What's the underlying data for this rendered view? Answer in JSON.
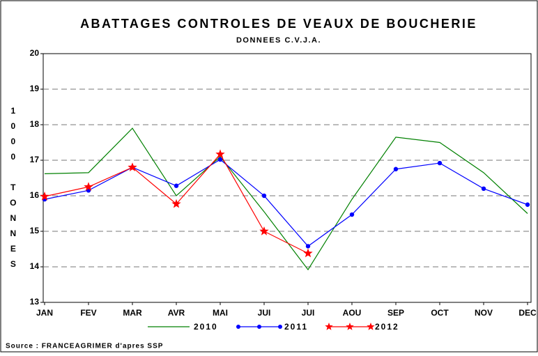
{
  "chart_data": {
    "type": "line",
    "title": "ABATTAGES CONTROLES DE VEAUX DE BOUCHERIE",
    "subtitle": "DONNEES C.V.J.A.",
    "y_label": "1000 TONNES",
    "source": "Source : FRANCEAGRIMER d'apres SSP",
    "categories": [
      "JAN",
      "FEV",
      "MAR",
      "AVR",
      "MAI",
      "JUI",
      "JUI",
      "AOU",
      "SEP",
      "OCT",
      "NOV",
      "DEC"
    ],
    "series": [
      {
        "name": "2010",
        "color": "#008000",
        "marker": "none",
        "values": [
          16.62,
          16.65,
          17.9,
          16.0,
          17.1,
          15.55,
          13.92,
          15.9,
          17.65,
          17.5,
          16.65,
          15.5
        ]
      },
      {
        "name": "2011",
        "color": "#0000ff",
        "marker": "circle",
        "values": [
          15.9,
          16.15,
          16.8,
          16.28,
          17.02,
          16.0,
          14.58,
          15.47,
          16.75,
          16.92,
          16.2,
          15.75
        ]
      },
      {
        "name": "2012",
        "color": "#ff0000",
        "marker": "star",
        "values": [
          15.98,
          16.25,
          16.8,
          15.77,
          17.17,
          15.0,
          14.38,
          null,
          null,
          null,
          null,
          null
        ]
      }
    ],
    "ylim": [
      13,
      20
    ],
    "yticks": [
      13,
      14,
      15,
      16,
      17,
      18,
      19,
      20
    ],
    "grid": true
  }
}
